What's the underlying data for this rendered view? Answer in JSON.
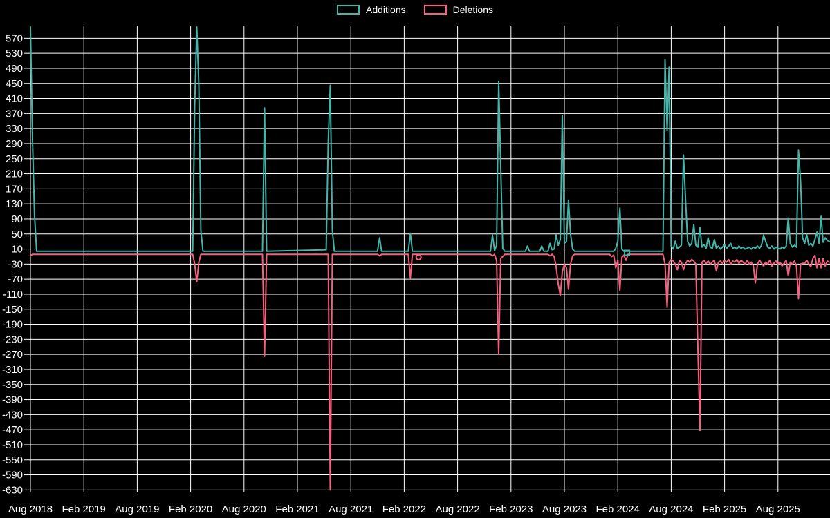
{
  "legend": {
    "items": [
      {
        "label": "Additions",
        "color": "#44b5ab"
      },
      {
        "label": "Deletions",
        "color": "#f4607e"
      }
    ]
  },
  "chart_data": {
    "type": "line",
    "title": "",
    "xlabel": "",
    "ylabel": "",
    "background_color": "#000000",
    "grid_color": "#ffffff",
    "grid": true,
    "legend_position": "top-center",
    "x_axis": {
      "unit": "weeks since Aug 2018",
      "tick_labels": [
        "Aug 2018",
        "Feb 2019",
        "Aug 2019",
        "Feb 2020",
        "Aug 2020",
        "Feb 2021",
        "Aug 2021",
        "Feb 2022",
        "Aug 2022",
        "Feb 2023",
        "Aug 2023",
        "Feb 2024",
        "Aug 2024",
        "Feb 2025",
        "Aug 2025"
      ],
      "weeks_per_tick": 26,
      "x_range_weeks": [
        0,
        389
      ]
    },
    "y_axis": {
      "tick_values": [
        570,
        530,
        490,
        450,
        410,
        370,
        330,
        290,
        250,
        210,
        170,
        130,
        90,
        50,
        10,
        -30,
        -70,
        -110,
        -150,
        -190,
        -230,
        -270,
        -310,
        -350,
        -390,
        -430,
        -470,
        -510,
        -550,
        -590,
        -630
      ],
      "ylim": [
        -634,
        604
      ]
    },
    "series": [
      {
        "name": "Additions",
        "color": "#44b5ab",
        "marker_shape": "square",
        "marker_points": [
          [
            290.5,
            0
          ]
        ],
        "points": [
          [
            0,
            600
          ],
          [
            1,
            300
          ],
          [
            2,
            100
          ],
          [
            3,
            4
          ],
          [
            79,
            4
          ],
          [
            80,
            390
          ],
          [
            81,
            600
          ],
          [
            82,
            445
          ],
          [
            83,
            60
          ],
          [
            84,
            4
          ],
          [
            113,
            4
          ],
          [
            114,
            385
          ],
          [
            115,
            4
          ],
          [
            144,
            8
          ],
          [
            145,
            290
          ],
          [
            146,
            445
          ],
          [
            147,
            60
          ],
          [
            148,
            4
          ],
          [
            169,
            4
          ],
          [
            170,
            40
          ],
          [
            171,
            4
          ],
          [
            184,
            4
          ],
          [
            185,
            52
          ],
          [
            186,
            4
          ],
          [
            224,
            4
          ],
          [
            225,
            47
          ],
          [
            226,
            6
          ],
          [
            227,
            20
          ],
          [
            228,
            455
          ],
          [
            229,
            227
          ],
          [
            230,
            12
          ],
          [
            231,
            4
          ],
          [
            241,
            4
          ],
          [
            242,
            18
          ],
          [
            243,
            4
          ],
          [
            248,
            4
          ],
          [
            249,
            18
          ],
          [
            250,
            4
          ],
          [
            252,
            4
          ],
          [
            253,
            25
          ],
          [
            254,
            8
          ],
          [
            255,
            10
          ],
          [
            256,
            48
          ],
          [
            257,
            20
          ],
          [
            258,
            35
          ],
          [
            259,
            365
          ],
          [
            260,
            25
          ],
          [
            261,
            30
          ],
          [
            262,
            140
          ],
          [
            263,
            50
          ],
          [
            264,
            10
          ],
          [
            265,
            4
          ],
          [
            284,
            4
          ],
          [
            285,
            12
          ],
          [
            286,
            30
          ],
          [
            287,
            119
          ],
          [
            288,
            10
          ],
          [
            289,
            4
          ],
          [
            308,
            4
          ],
          [
            309,
            513
          ],
          [
            310,
            325
          ],
          [
            311,
            493
          ],
          [
            312,
            18
          ],
          [
            313,
            10
          ],
          [
            314,
            31
          ],
          [
            315,
            12
          ],
          [
            316,
            15
          ],
          [
            317,
            20
          ],
          [
            318,
            260
          ],
          [
            319,
            140
          ],
          [
            320,
            30
          ],
          [
            321,
            18
          ],
          [
            322,
            25
          ],
          [
            323,
            75
          ],
          [
            324,
            20
          ],
          [
            325,
            15
          ],
          [
            326,
            68
          ],
          [
            327,
            15
          ],
          [
            328,
            22
          ],
          [
            329,
            12
          ],
          [
            330,
            40
          ],
          [
            331,
            15
          ],
          [
            332,
            12
          ],
          [
            333,
            35
          ],
          [
            334,
            12
          ],
          [
            335,
            18
          ],
          [
            336,
            10
          ],
          [
            337,
            15
          ],
          [
            338,
            22
          ],
          [
            339,
            12
          ],
          [
            340,
            18
          ],
          [
            341,
            25
          ],
          [
            342,
            12
          ],
          [
            343,
            15
          ],
          [
            344,
            10
          ],
          [
            345,
            18
          ],
          [
            346,
            12
          ],
          [
            347,
            15
          ],
          [
            348,
            10
          ],
          [
            349,
            12
          ],
          [
            350,
            15
          ],
          [
            351,
            10
          ],
          [
            352,
            15
          ],
          [
            353,
            12
          ],
          [
            354,
            18
          ],
          [
            355,
            12
          ],
          [
            356,
            20
          ],
          [
            357,
            47
          ],
          [
            358,
            30
          ],
          [
            359,
            15
          ],
          [
            360,
            12
          ],
          [
            361,
            18
          ],
          [
            362,
            10
          ],
          [
            363,
            15
          ],
          [
            364,
            12
          ],
          [
            365,
            10
          ],
          [
            366,
            15
          ],
          [
            367,
            12
          ],
          [
            368,
            18
          ],
          [
            369,
            93
          ],
          [
            370,
            25
          ],
          [
            371,
            15
          ],
          [
            372,
            20
          ],
          [
            373,
            15
          ],
          [
            374,
            273
          ],
          [
            375,
            190
          ],
          [
            376,
            40
          ],
          [
            377,
            25
          ],
          [
            378,
            48
          ],
          [
            379,
            20
          ],
          [
            380,
            25
          ],
          [
            381,
            18
          ],
          [
            382,
            35
          ],
          [
            383,
            55
          ],
          [
            384,
            25
          ],
          [
            385,
            97
          ],
          [
            386,
            28
          ],
          [
            387,
            40
          ],
          [
            388,
            33
          ],
          [
            389,
            30
          ]
        ]
      },
      {
        "name": "Deletions",
        "color": "#f4607e",
        "marker_shape": "circle",
        "marker_points": [
          [
            189,
            -12
          ]
        ],
        "points": [
          [
            0,
            -8
          ],
          [
            1,
            -4
          ],
          [
            79,
            -4
          ],
          [
            80,
            -30
          ],
          [
            81,
            -77
          ],
          [
            82,
            -25
          ],
          [
            83,
            -4
          ],
          [
            113,
            -4
          ],
          [
            114,
            -275
          ],
          [
            115,
            -4
          ],
          [
            145,
            -4
          ],
          [
            146,
            -630
          ],
          [
            147,
            -4
          ],
          [
            169,
            -4
          ],
          [
            170,
            -8
          ],
          [
            171,
            -4
          ],
          [
            184,
            -4
          ],
          [
            185,
            -67
          ],
          [
            186,
            -4
          ],
          [
            224,
            -4
          ],
          [
            225,
            -8
          ],
          [
            226,
            -4
          ],
          [
            227,
            -20
          ],
          [
            228,
            -270
          ],
          [
            229,
            -15
          ],
          [
            230,
            -10
          ],
          [
            231,
            -4
          ],
          [
            252,
            -4
          ],
          [
            253,
            -8
          ],
          [
            254,
            -4
          ],
          [
            255,
            -10
          ],
          [
            256,
            -37
          ],
          [
            257,
            -83
          ],
          [
            258,
            -113
          ],
          [
            259,
            -50
          ],
          [
            260,
            -30
          ],
          [
            261,
            -40
          ],
          [
            262,
            -97
          ],
          [
            263,
            -30
          ],
          [
            264,
            -8
          ],
          [
            265,
            -4
          ],
          [
            282,
            -4
          ],
          [
            283,
            -10
          ],
          [
            284,
            -6
          ],
          [
            285,
            -40
          ],
          [
            286,
            -20
          ],
          [
            287,
            -100
          ],
          [
            288,
            -12
          ],
          [
            289,
            -6
          ],
          [
            290,
            -20
          ],
          [
            291,
            -4
          ],
          [
            308,
            -4
          ],
          [
            309,
            -30
          ],
          [
            310,
            -145
          ],
          [
            311,
            -25
          ],
          [
            312,
            -18
          ],
          [
            313,
            -22
          ],
          [
            314,
            -30
          ],
          [
            315,
            -45
          ],
          [
            316,
            -20
          ],
          [
            317,
            -25
          ],
          [
            318,
            -45
          ],
          [
            319,
            -28
          ],
          [
            320,
            -20
          ],
          [
            321,
            -25
          ],
          [
            322,
            -18
          ],
          [
            323,
            -22
          ],
          [
            324,
            -30
          ],
          [
            325,
            -255
          ],
          [
            326,
            -472
          ],
          [
            327,
            -25
          ],
          [
            328,
            -20
          ],
          [
            329,
            -28
          ],
          [
            330,
            -22
          ],
          [
            331,
            -30
          ],
          [
            332,
            -25
          ],
          [
            333,
            -20
          ],
          [
            334,
            -48
          ],
          [
            335,
            -25
          ],
          [
            336,
            -22
          ],
          [
            337,
            -28
          ],
          [
            338,
            -20
          ],
          [
            339,
            -25
          ],
          [
            340,
            -18
          ],
          [
            341,
            -30
          ],
          [
            342,
            -22
          ],
          [
            343,
            -25
          ],
          [
            344,
            -18
          ],
          [
            345,
            -28
          ],
          [
            346,
            -20
          ],
          [
            347,
            -25
          ],
          [
            348,
            -30
          ],
          [
            349,
            -20
          ],
          [
            350,
            -30
          ],
          [
            351,
            -25
          ],
          [
            352,
            -35
          ],
          [
            353,
            -80
          ],
          [
            354,
            -30
          ],
          [
            355,
            -20
          ],
          [
            356,
            -28
          ],
          [
            357,
            -35
          ],
          [
            358,
            -25
          ],
          [
            359,
            -30
          ],
          [
            360,
            -20
          ],
          [
            361,
            -35
          ],
          [
            362,
            -28
          ],
          [
            363,
            -22
          ],
          [
            364,
            -30
          ],
          [
            365,
            -25
          ],
          [
            366,
            -35
          ],
          [
            367,
            -28
          ],
          [
            368,
            -20
          ],
          [
            369,
            -61
          ],
          [
            370,
            -25
          ],
          [
            371,
            -30
          ],
          [
            372,
            -22
          ],
          [
            373,
            -35
          ],
          [
            374,
            -122
          ],
          [
            375,
            -30
          ],
          [
            376,
            -28
          ],
          [
            377,
            -28
          ],
          [
            378,
            -20
          ],
          [
            379,
            -30
          ],
          [
            380,
            -37
          ],
          [
            381,
            -15
          ],
          [
            382,
            -7
          ],
          [
            383,
            -40
          ],
          [
            384,
            -15
          ],
          [
            385,
            -40
          ],
          [
            386,
            -15
          ],
          [
            387,
            -35
          ],
          [
            388,
            -22
          ],
          [
            389,
            -25
          ]
        ]
      }
    ]
  }
}
